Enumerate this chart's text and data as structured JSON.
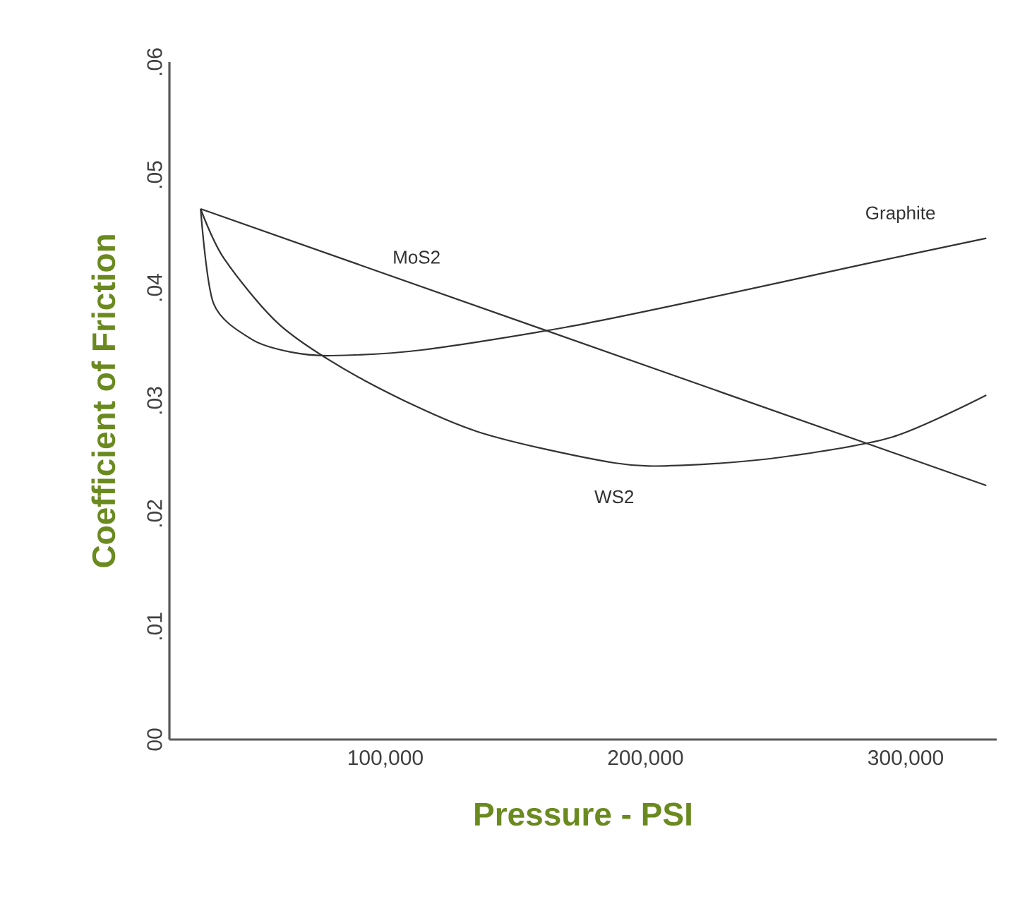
{
  "chart_data": {
    "type": "line",
    "xlabel": "Pressure - PSI",
    "ylabel": "Coefficient of Friction",
    "xlim": [
      17000,
      335000
    ],
    "ylim": [
      0,
      0.06
    ],
    "xticks": [
      {
        "value": 100000,
        "label": "100,000"
      },
      {
        "value": 200000,
        "label": "200,000"
      },
      {
        "value": 300000,
        "label": "300,000"
      }
    ],
    "yticks": [
      {
        "value": 0,
        "label": "00"
      },
      {
        "value": 0.01,
        "label": ".01"
      },
      {
        "value": 0.02,
        "label": ".02"
      },
      {
        "value": 0.03,
        "label": ".03"
      },
      {
        "value": 0.04,
        "label": ".04"
      },
      {
        "value": 0.05,
        "label": ".05"
      },
      {
        "value": 0.06,
        "label": ".06"
      }
    ],
    "grid": false,
    "legend": false,
    "marker": "none",
    "line_style": "solid",
    "series": [
      {
        "name": "MoS2",
        "color": "#333333",
        "x": [
          29000,
          331000
        ],
        "values": [
          0.047,
          0.0225
        ]
      },
      {
        "name": "Graphite",
        "color": "#333333",
        "x": [
          29000,
          34000,
          49000,
          64000,
          79000,
          114000,
          169000,
          220000,
          284000,
          331000
        ],
        "values": [
          0.047,
          0.0386,
          0.0354,
          0.0343,
          0.034,
          0.0345,
          0.0365,
          0.0389,
          0.0421,
          0.0444
        ]
      },
      {
        "name": "WS2",
        "color": "#333333",
        "x": [
          29000,
          38000,
          60000,
          92000,
          135000,
          188000,
          216000,
          252000,
          295000,
          331000
        ],
        "values": [
          0.047,
          0.0426,
          0.0366,
          0.0318,
          0.0273,
          0.0245,
          0.0243,
          0.025,
          0.0268,
          0.0305
        ]
      }
    ]
  }
}
